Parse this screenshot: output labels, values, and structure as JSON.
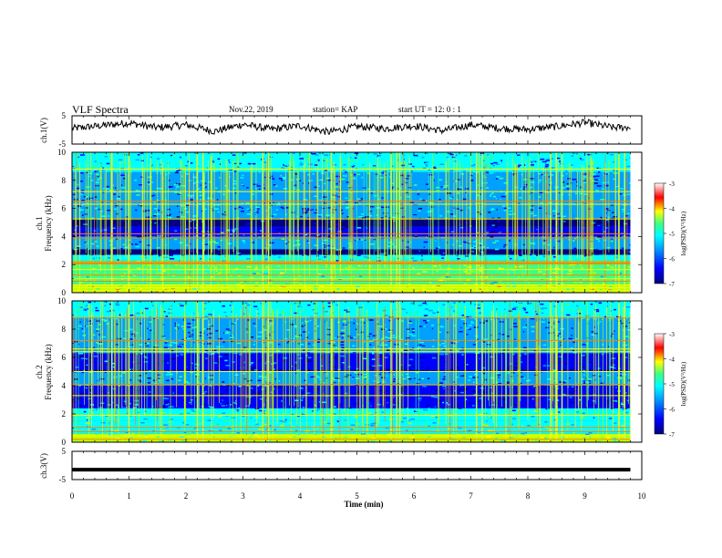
{
  "header": {
    "title": "VLF Spectra",
    "date": "Nov.22, 2019",
    "station": "station= KAP",
    "start": "start  UT  =   12: 0  : 1"
  },
  "colors": {
    "colormap": [
      "#000080",
      "#0000ff",
      "#00a0ff",
      "#00ffff",
      "#40ff80",
      "#c0ff00",
      "#ffff00",
      "#ff8000",
      "#ff0000",
      "#ffffff"
    ],
    "waveform": "#000000",
    "spectrogram_background": "#1e6fd8"
  },
  "chart_data": [
    {
      "type": "line",
      "name": "waveform-ch1",
      "ylabel": "ch.1(V)",
      "ylim": [
        -5,
        5
      ],
      "yticks": [
        "5",
        "-5"
      ],
      "xlim": [
        0,
        10
      ],
      "description_values": {
        "t_min": [
          0,
          0.5,
          1,
          1.5,
          2,
          2.5,
          3,
          3.5,
          4,
          4.5,
          5,
          5.5,
          6,
          6.5,
          7,
          7.5,
          8,
          8.5,
          9,
          9.5,
          9.8
        ],
        "v": [
          0.5,
          1.5,
          2.5,
          0.8,
          1.8,
          -0.5,
          2.0,
          0.2,
          1.5,
          -0.8,
          1.2,
          0.5,
          1.5,
          -0.3,
          1.8,
          0.6,
          0.2,
          1.2,
          2.6,
          0.8,
          1.0
        ]
      }
    },
    {
      "type": "heatmap",
      "name": "spectrogram-ch1",
      "ylabel": "Frequency (kHz)",
      "channel_label": "ch.1",
      "ylim": [
        0,
        10
      ],
      "yticks": [
        "0",
        "2",
        "4",
        "6",
        "8",
        "10"
      ],
      "xlim": [
        0,
        10
      ],
      "colorbar": {
        "label": "log(PSD)(V²/Hz)",
        "ticks": [
          "-3",
          "-4",
          "-5",
          "-6",
          "-7"
        ],
        "range": [
          -7,
          -3
        ]
      },
      "bands_khz": [
        {
          "low": 0.0,
          "high": 0.6,
          "level": -4.5
        },
        {
          "low": 0.6,
          "high": 1.5,
          "level": -5.0
        },
        {
          "low": 1.5,
          "high": 2.3,
          "level": -4.8
        },
        {
          "low": 2.3,
          "high": 2.7,
          "level": -5.6
        },
        {
          "low": 2.7,
          "high": 3.1,
          "level": -6.6
        },
        {
          "low": 3.1,
          "high": 4.0,
          "level": -5.7
        },
        {
          "low": 4.0,
          "high": 4.7,
          "level": -6.4
        },
        {
          "low": 4.7,
          "high": 5.3,
          "level": -6.7
        },
        {
          "low": 5.3,
          "high": 6.3,
          "level": -6.0
        },
        {
          "low": 6.3,
          "high": 8.6,
          "level": -5.8
        },
        {
          "low": 8.6,
          "high": 10.0,
          "level": -5.6
        }
      ],
      "lines_khz": [
        0.15,
        0.35,
        0.55,
        0.8,
        1.0,
        1.25,
        1.65,
        2.05,
        2.1,
        2.2,
        3.9,
        4.2,
        5.25,
        6.3,
        6.5,
        7.2,
        8.8
      ],
      "bursts_min": [
        0.7,
        1.0,
        2.2,
        2.3,
        3.35,
        3.45,
        4.55,
        5.6,
        5.7,
        5.75,
        7.1,
        7.2,
        8.4,
        8.5,
        8.6,
        9.6,
        9.7
      ]
    },
    {
      "type": "heatmap",
      "name": "spectrogram-ch2",
      "ylabel": "Frequency (kHz)",
      "channel_label": "ch.2",
      "ylim": [
        0,
        10
      ],
      "yticks": [
        "0",
        "2",
        "4",
        "6",
        "8",
        "10"
      ],
      "xlim": [
        0,
        10
      ],
      "colorbar": {
        "label": "log(PSD)(V²/Hz)",
        "ticks": [
          "-3",
          "-4",
          "-5",
          "-6",
          "-7"
        ],
        "range": [
          -7,
          -3
        ]
      },
      "bands_khz": [
        {
          "low": 0.0,
          "high": 0.6,
          "level": -4.7
        },
        {
          "low": 0.6,
          "high": 1.5,
          "level": -5.3
        },
        {
          "low": 1.5,
          "high": 2.4,
          "level": -5.4
        },
        {
          "low": 2.4,
          "high": 3.1,
          "level": -6.2
        },
        {
          "low": 3.1,
          "high": 4.0,
          "level": -6.5
        },
        {
          "low": 4.0,
          "high": 5.0,
          "level": -5.9
        },
        {
          "low": 5.0,
          "high": 6.3,
          "level": -6.4
        },
        {
          "low": 6.3,
          "high": 8.8,
          "level": -5.9
        },
        {
          "low": 8.8,
          "high": 10.0,
          "level": -5.6
        }
      ],
      "lines_khz": [
        0.2,
        0.45,
        0.75,
        1.05,
        1.9,
        3.3,
        4.1,
        5.0,
        6.4,
        6.6,
        7.2,
        8.8
      ],
      "bursts_min": [
        0.7,
        1.0,
        2.2,
        2.3,
        3.35,
        3.45,
        4.55,
        5.6,
        5.7,
        5.75,
        7.1,
        7.2,
        8.4,
        8.5,
        8.6,
        9.6,
        9.7
      ]
    },
    {
      "type": "line",
      "name": "waveform-ch3",
      "ylabel": "ch.3(V)",
      "ylim": [
        -5,
        5
      ],
      "yticks": [
        "5",
        "-5"
      ],
      "xlim": [
        0,
        10
      ],
      "description_values": {
        "t_min": [
          0,
          9.8
        ],
        "v": [
          -1.5,
          -1.5
        ]
      }
    }
  ],
  "xaxis": {
    "label": "Time (min)",
    "ticks": [
      "0",
      "1",
      "2",
      "3",
      "4",
      "5",
      "6",
      "7",
      "8",
      "9",
      "10"
    ],
    "range": [
      0,
      10
    ]
  }
}
